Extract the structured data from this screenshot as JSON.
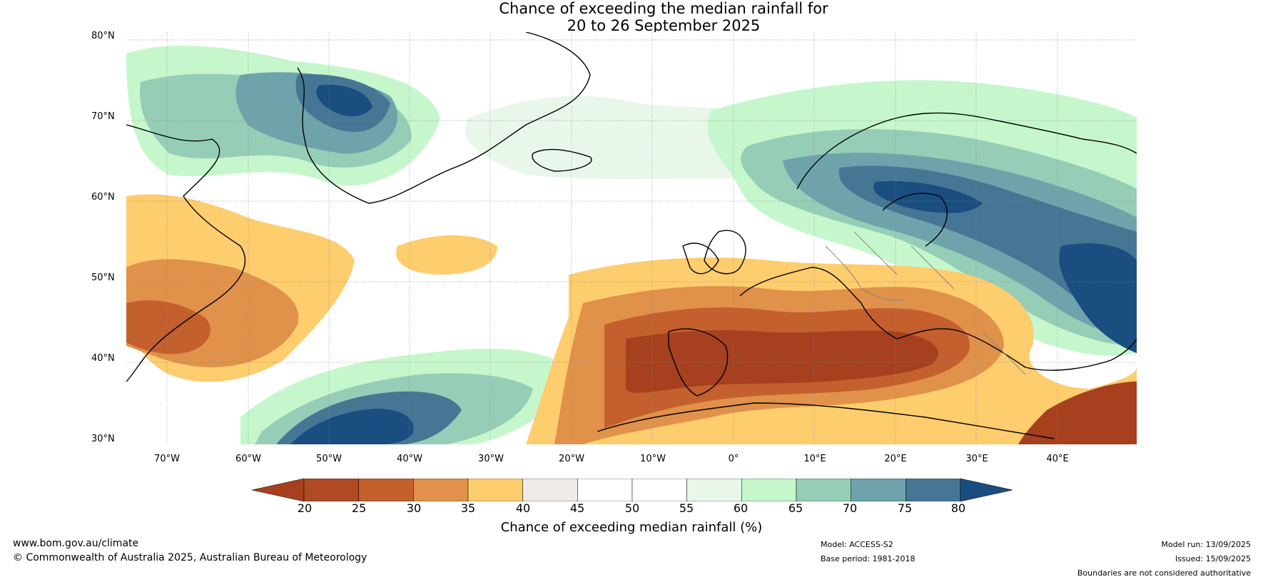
{
  "title_line1": "Chance of exceeding the median rainfall for",
  "title_line2": "20 to 26 September 2025",
  "lat_labels": [
    "80°N",
    "70°N",
    "60°N",
    "50°N",
    "40°N",
    "30°N"
  ],
  "lon_labels": [
    "70°W",
    "60°W",
    "50°W",
    "40°W",
    "30°W",
    "20°W",
    "10°W",
    "0°",
    "10°E",
    "20°E",
    "30°E",
    "40°E"
  ],
  "colorbar": {
    "ticks": [
      "20",
      "25",
      "30",
      "35",
      "40",
      "45",
      "50",
      "55",
      "60",
      "65",
      "70",
      "75",
      "80"
    ],
    "colors": [
      "#a7401e",
      "#b04a24",
      "#c45f2e",
      "#e0914a",
      "#fdcd6e",
      "#efebe8",
      "#ffffff",
      "#ffffff",
      "#e8f7e9",
      "#c6f7cc",
      "#96cdb7",
      "#6fa3ab",
      "#457794",
      "#1a4d80"
    ],
    "label": "Chance of exceeding median rainfall (%)"
  },
  "footer": {
    "website": "www.bom.gov.au/climate",
    "copyright": "© Commonwealth of Australia 2025, Australian Bureau of Meteorology",
    "model": "Model: ACCESS-S2",
    "base_period": "Base period: 1981-2018",
    "model_run": "Model run: 13/09/2025",
    "issued": "Issued: 15/09/2025",
    "disclaimer": "Boundaries are not considered authoritative"
  }
}
